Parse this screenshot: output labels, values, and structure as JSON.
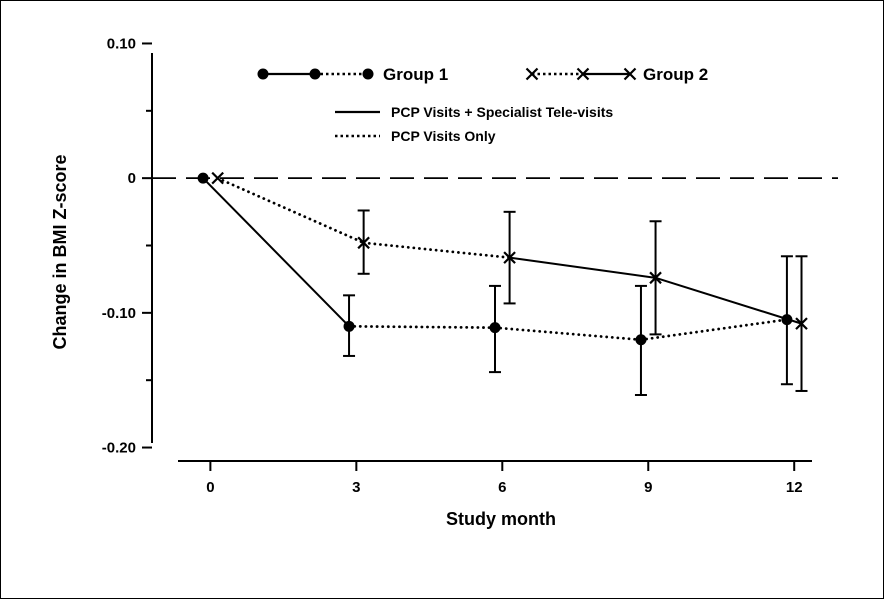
{
  "chart_data": {
    "type": "line",
    "title": "",
    "xlabel": "Study month",
    "ylabel": "Change in BMI Z-score",
    "xticks": [
      0,
      3,
      6,
      9,
      12
    ],
    "xtick_labels": [
      "0",
      "3",
      "6",
      "9",
      "12"
    ],
    "yticks": [
      0.1,
      0,
      -0.1,
      -0.2
    ],
    "ytick_labels": [
      "0.10",
      "0",
      "-0.10",
      "-0.20"
    ],
    "xlim": [
      -1.2,
      12.9
    ],
    "ylim": [
      -0.21,
      0.11
    ],
    "reference_line": {
      "y": 0,
      "style": "dashed"
    },
    "grid": false,
    "legend": {
      "placement": "top",
      "groups": [
        {
          "label": "Group 1",
          "marker": "circle"
        },
        {
          "label": "Group 2",
          "marker": "x"
        }
      ],
      "line_styles": [
        {
          "label": "PCP Visits + Specialist Tele-visits",
          "style": "solid"
        },
        {
          "label": "PCP Visits Only",
          "style": "dotted"
        }
      ]
    },
    "series": [
      {
        "name": "Group 1",
        "marker": "circle",
        "x": [
          -0.15,
          2.85,
          5.85,
          8.85,
          11.85
        ],
        "y": [
          0,
          -0.11,
          -0.111,
          -0.12,
          -0.105
        ],
        "lower": [
          0,
          -0.132,
          -0.144,
          -0.161,
          -0.153
        ],
        "upper": [
          0,
          -0.087,
          -0.08,
          -0.08,
          -0.058
        ],
        "segment_styles": [
          "solid",
          "dotted",
          "dotted",
          "dotted"
        ]
      },
      {
        "name": "Group 2",
        "marker": "x",
        "x": [
          0.15,
          3.15,
          6.15,
          9.15,
          12.15
        ],
        "y": [
          0,
          -0.048,
          -0.059,
          -0.074,
          -0.108
        ],
        "lower": [
          0,
          -0.071,
          -0.093,
          -0.116,
          -0.158
        ],
        "upper": [
          0,
          -0.024,
          -0.025,
          -0.032,
          -0.058
        ],
        "segment_styles": [
          "dotted",
          "dotted",
          "solid",
          "solid"
        ]
      }
    ]
  }
}
